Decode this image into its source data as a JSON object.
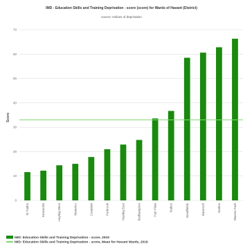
{
  "chart_data": {
    "type": "bar",
    "title": "IMD - Education Skills and Training Deprivation - score (score) for Wards of Havant (District)",
    "subtitle": "source: Indices of deprivation",
    "ylabel": "Score",
    "ylim": [
      0,
      70
    ],
    "yticks": [
      0,
      10,
      20,
      30,
      40,
      50,
      60,
      70
    ],
    "categories": [
      "St Faiths",
      "Emsworth",
      "Hayling West",
      "Waterloo",
      "Cowplain",
      "Purbrook",
      "Hayling East",
      "Bedhampton",
      "Hart Plain",
      "Stakes",
      "Bondfields",
      "Barncroft",
      "Battins",
      "Warren Park"
    ],
    "series": [
      {
        "name": "IMD: Education Skills and Training Deprivation - score, 2019",
        "values": [
          11.6,
          12.2,
          14.4,
          15.0,
          17.8,
          21.0,
          22.9,
          24.8,
          33.6,
          36.7,
          58.5,
          60.6,
          62.8,
          66.3
        ]
      }
    ],
    "mean": {
      "name": "IMD: Education Skills and Training Deprivation - score, Mean for Havant Wards, 2019",
      "value": 33.0
    },
    "colors": {
      "bar": "#1a8a0f",
      "mean_line": "#7fd66f",
      "grid": "#dddddd"
    },
    "grid": true,
    "legend_position": "bottom-left"
  }
}
